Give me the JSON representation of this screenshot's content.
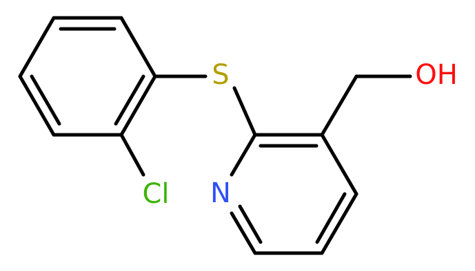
{
  "atoms": {
    "sulfur": "S",
    "hydroxyl": "OH",
    "chlorine": "Cl",
    "nitrogen": "N"
  }
}
